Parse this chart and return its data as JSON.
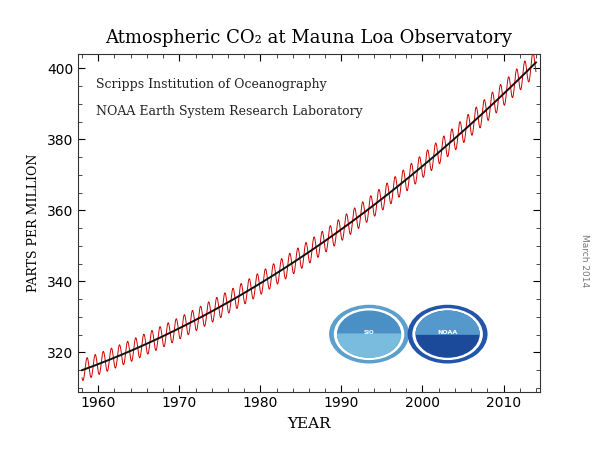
{
  "title": "Atmospheric CO₂ at Mauna Loa Observatory",
  "xlabel": "YEAR",
  "ylabel": "PARTS PER MILLION",
  "xlim": [
    1957.5,
    2014.5
  ],
  "ylim": [
    309,
    404
  ],
  "yticks": [
    320,
    340,
    360,
    380,
    400
  ],
  "xticks": [
    1960,
    1970,
    1980,
    1990,
    2000,
    2010
  ],
  "line_color_seasonal": "#cc0000",
  "line_color_trend": "#111111",
  "annotation_line1": "Scripps Institution of Oceanography",
  "annotation_line2": "NOAA Earth System Research Laboratory",
  "watermark": "March 2014",
  "background_color": "#ffffff",
  "figure_bg": "#ffffff",
  "scripps_color1": "#4a90c4",
  "scripps_color2": "#5ba8d8",
  "noaa_color1": "#1a3a8b",
  "noaa_color2": "#2a6ab8"
}
